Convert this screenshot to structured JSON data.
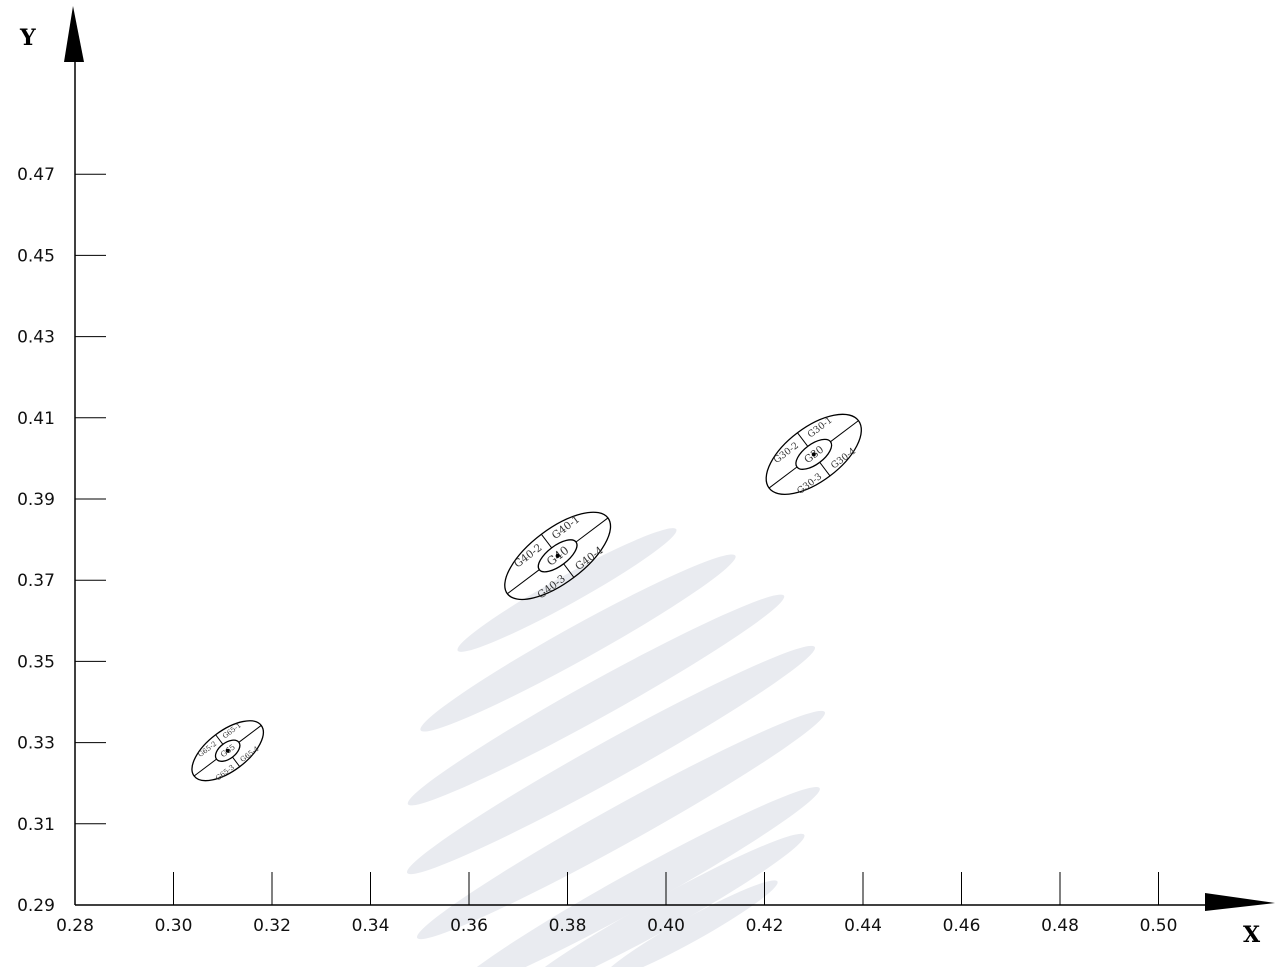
{
  "chart_data": {
    "type": "scatter",
    "title": "",
    "xlabel": "X",
    "ylabel": "Y",
    "xlim": [
      0.28,
      0.5
    ],
    "ylim": [
      0.29,
      0.49
    ],
    "x_ticks": [
      "0.28",
      "0.30",
      "0.32",
      "0.34",
      "0.36",
      "0.38",
      "0.40",
      "0.42",
      "0.44",
      "0.46",
      "0.48",
      "0.50"
    ],
    "y_ticks": [
      "0.29",
      "0.31",
      "0.33",
      "0.35",
      "0.37",
      "0.39",
      "0.41",
      "0.43",
      "0.45",
      "0.47"
    ],
    "grid": false,
    "regions": [
      {
        "name": "G65",
        "center": [
          0.311,
          0.328
        ],
        "sectors": [
          "G65-1",
          "G65-2",
          "G65-3",
          "G65-4"
        ]
      },
      {
        "name": "G40",
        "center": [
          0.378,
          0.376
        ],
        "sectors": [
          "G40-1",
          "G40-2",
          "G40-3",
          "G40-4"
        ]
      },
      {
        "name": "G30",
        "center": [
          0.43,
          0.401
        ],
        "sectors": [
          "G30-1",
          "G30-2",
          "G30-3",
          "G30-4"
        ]
      }
    ],
    "watermark_bands": 8,
    "colors": {
      "axis": "#000000",
      "ellipse": "#000000",
      "watermark": "#e9ebf0"
    }
  }
}
